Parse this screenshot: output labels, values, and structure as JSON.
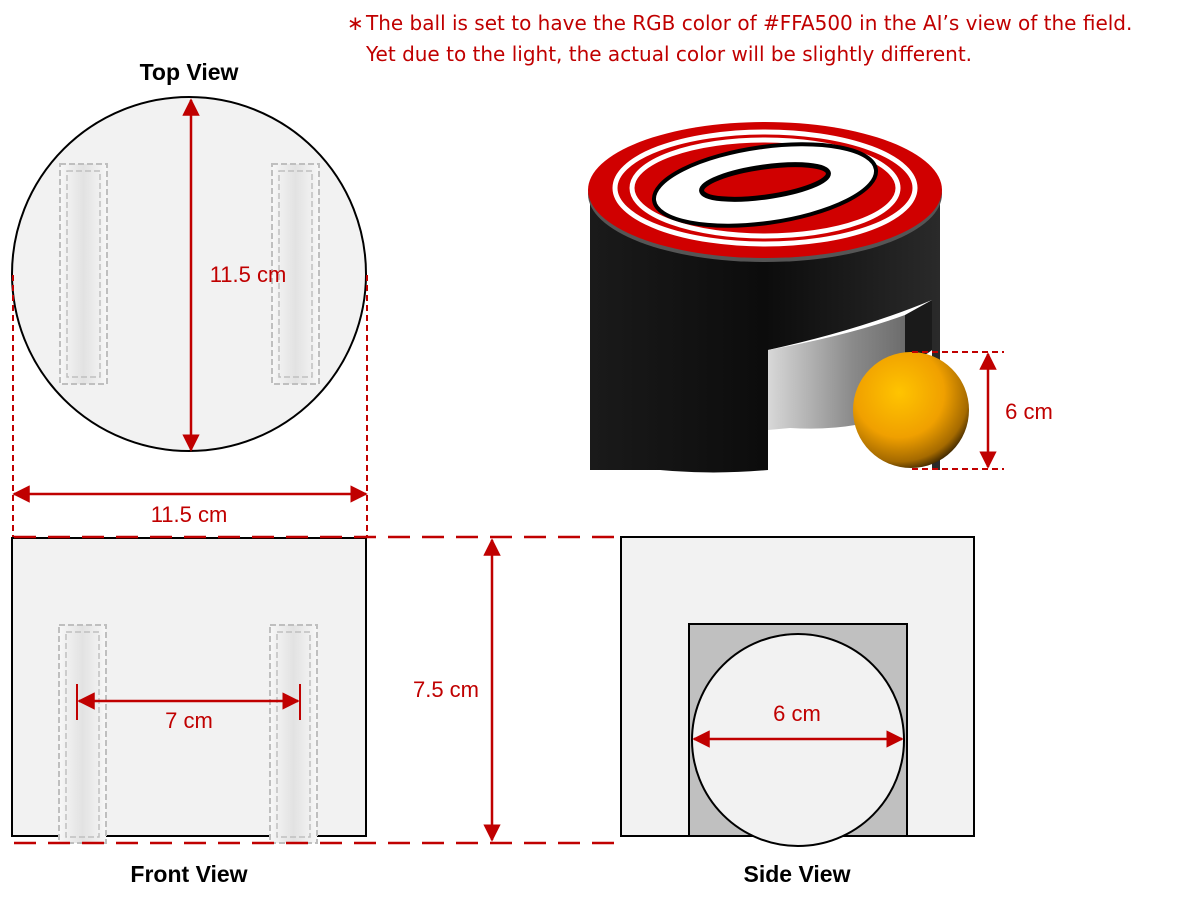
{
  "note": {
    "bullet": "∗",
    "line1": "The ball is set to have the RGB color of #FFA500 in the AI’s view of the field.",
    "line2": "Yet due to the light, the actual color will be slightly different."
  },
  "views": {
    "top_title": "Top View",
    "front_title": "Front View",
    "side_title": "Side View"
  },
  "dimensions": {
    "top_diameter_vertical": "11.5 cm",
    "top_diameter_horizontal": "11.5 cm",
    "height": "7.5 cm",
    "wheel_spacing": "7 cm",
    "ball_diameter_3d": "6 cm",
    "ball_diameter_side": "6 cm"
  },
  "colors": {
    "annotation": "#c00000",
    "ball_nominal": "#FFA500",
    "panel_fill": "#f2f2f2",
    "robot_body": "#111111",
    "robot_top_red": "#d00000"
  }
}
